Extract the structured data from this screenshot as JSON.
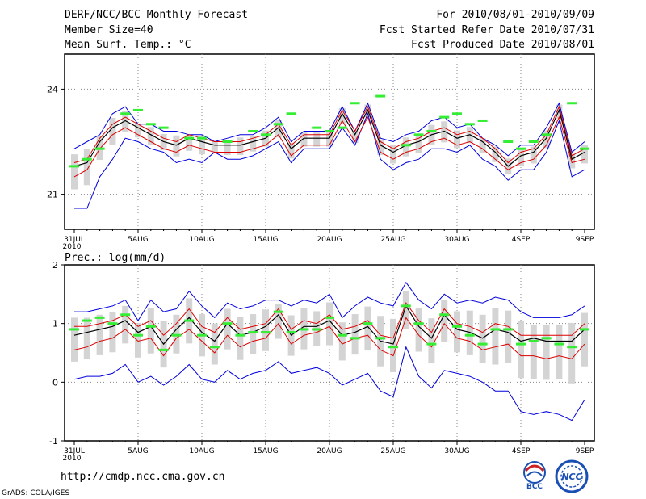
{
  "header": {
    "title": "DERF/NCC/BCC Monthly Forecast",
    "member_size": "Member Size=40",
    "variable": "Mean Surf. Temp.: °C",
    "period": "For 2010/08/01-2010/09/09",
    "start_refer": "Fcst Started Refer Date 2010/07/31",
    "produced": "Fcst Produced Date 2010/08/01"
  },
  "footer": {
    "url": "http://cmdp.ncc.cma.gov.cn",
    "credit": "GrADS: COLA/IGES",
    "logo_left": "BCC",
    "logo_right": "NCC"
  },
  "colors": {
    "ensemble_mean": "#000000",
    "percentile_band": "#dd0000",
    "extreme_envelope": "#0000dd",
    "member_bar": "#d4d4d4",
    "observation": "#33ee33",
    "grid": "#888888"
  },
  "chart_data": [
    {
      "type": "line",
      "title": "Mean Surf. Temp.: °C",
      "ylim": [
        20.0,
        25.0
      ],
      "yticks": [
        21,
        24
      ],
      "xtick_labels": [
        "31JUL",
        "5AUG",
        "10AUG",
        "15AUG",
        "20AUG",
        "25AUG",
        "30AUG",
        "4SEP",
        "9SEP"
      ],
      "xtick_index": [
        0,
        5,
        10,
        15,
        20,
        25,
        30,
        35,
        40
      ],
      "x_sublabel": "2010",
      "x_start_day": 1,
      "x_end_day": 40,
      "series": [
        {
          "name": "mean",
          "values": [
            21.8,
            21.9,
            22.5,
            22.9,
            23.1,
            22.9,
            22.7,
            22.5,
            22.4,
            22.6,
            22.5,
            22.4,
            22.4,
            22.4,
            22.5,
            22.6,
            22.9,
            22.3,
            22.6,
            22.6,
            22.6,
            23.3,
            22.7,
            23.4,
            22.4,
            22.2,
            22.4,
            22.5,
            22.7,
            22.8,
            22.6,
            22.7,
            22.5,
            22.2,
            21.8,
            22.1,
            22.2,
            22.6,
            23.4,
            22.0,
            22.2
          ]
        },
        {
          "name": "high_percentile",
          "values": [
            21.9,
            22.0,
            22.6,
            23.0,
            23.2,
            23.0,
            22.8,
            22.6,
            22.5,
            22.7,
            22.6,
            22.5,
            22.5,
            22.5,
            22.6,
            22.7,
            23.0,
            22.4,
            22.7,
            22.7,
            22.7,
            23.4,
            22.8,
            23.5,
            22.5,
            22.3,
            22.5,
            22.6,
            22.8,
            22.9,
            22.7,
            22.8,
            22.6,
            22.3,
            21.9,
            22.2,
            22.3,
            22.7,
            23.5,
            22.1,
            22.3
          ]
        },
        {
          "name": "low_percentile",
          "values": [
            21.5,
            21.7,
            22.3,
            22.7,
            22.9,
            22.7,
            22.5,
            22.3,
            22.2,
            22.4,
            22.3,
            22.2,
            22.2,
            22.2,
            22.3,
            22.4,
            22.7,
            22.1,
            22.4,
            22.4,
            22.4,
            23.1,
            22.5,
            23.2,
            22.2,
            22.0,
            22.2,
            22.3,
            22.5,
            22.6,
            22.4,
            22.5,
            22.3,
            22.0,
            21.7,
            21.9,
            22.0,
            22.4,
            23.2,
            21.9,
            22.0
          ]
        },
        {
          "name": "max",
          "values": [
            22.3,
            22.5,
            22.7,
            23.3,
            23.5,
            23.0,
            23.0,
            22.8,
            22.8,
            22.7,
            22.7,
            22.5,
            22.6,
            22.7,
            22.7,
            22.9,
            23.2,
            22.5,
            22.8,
            22.8,
            22.8,
            23.5,
            22.8,
            23.6,
            22.6,
            22.5,
            22.7,
            22.8,
            23.1,
            23.2,
            22.9,
            23.0,
            22.6,
            22.4,
            22.1,
            22.4,
            22.4,
            22.9,
            23.6,
            22.2,
            22.5
          ]
        },
        {
          "name": "min",
          "values": [
            20.6,
            20.6,
            21.5,
            22.0,
            22.6,
            22.5,
            22.3,
            22.2,
            21.9,
            22.0,
            21.9,
            22.2,
            22.0,
            22.0,
            22.1,
            22.3,
            22.5,
            21.9,
            22.3,
            22.3,
            22.3,
            22.9,
            22.4,
            23.3,
            22.0,
            21.7,
            21.9,
            22.0,
            22.3,
            22.3,
            22.2,
            22.4,
            22.0,
            21.8,
            21.4,
            21.7,
            21.7,
            22.2,
            23.1,
            21.5,
            21.7
          ]
        },
        {
          "name": "observation",
          "values": [
            21.8,
            22.0,
            22.3,
            null,
            23.3,
            23.4,
            23.0,
            22.9,
            null,
            22.6,
            22.6,
            null,
            22.5,
            null,
            22.8,
            22.7,
            23.0,
            23.3,
            null,
            22.9,
            22.8,
            22.9,
            23.6,
            null,
            23.8,
            null,
            22.4,
            22.7,
            22.8,
            23.2,
            23.3,
            23.0,
            23.1,
            null,
            22.5,
            22.3,
            22.5,
            22.7,
            null,
            23.6,
            22.3
          ]
        }
      ]
    },
    {
      "type": "line",
      "title": "Prec.: log(mm/d)",
      "ylim": [
        -1,
        2
      ],
      "yticks": [
        -1,
        0,
        1,
        2
      ],
      "xtick_labels": [
        "31JUL",
        "5AUG",
        "10AUG",
        "15AUG",
        "20AUG",
        "25AUG",
        "30AUG",
        "4SEP",
        "9SEP"
      ],
      "xtick_index": [
        0,
        5,
        10,
        15,
        20,
        25,
        30,
        35,
        40
      ],
      "x_sublabel": "2010",
      "series": [
        {
          "name": "mean",
          "values": [
            0.8,
            0.85,
            0.9,
            0.95,
            1.05,
            0.85,
            0.95,
            0.65,
            0.9,
            1.1,
            0.85,
            0.7,
            1.0,
            0.8,
            0.85,
            0.95,
            1.15,
            0.8,
            0.95,
            0.95,
            1.05,
            0.8,
            0.85,
            0.95,
            0.7,
            0.65,
            1.3,
            0.95,
            0.75,
            1.15,
            0.9,
            0.85,
            0.75,
            0.9,
            0.85,
            0.7,
            0.75,
            0.7,
            0.7,
            0.7,
            0.9
          ]
        },
        {
          "name": "high_percentile",
          "values": [
            0.95,
            0.95,
            1.0,
            1.05,
            1.15,
            0.95,
            1.05,
            0.8,
            1.0,
            1.25,
            0.95,
            0.85,
            1.1,
            0.9,
            0.95,
            1.0,
            1.25,
            0.9,
            1.05,
            1.0,
            1.15,
            0.9,
            0.95,
            1.05,
            0.8,
            0.75,
            1.35,
            1.05,
            0.85,
            1.25,
            1.0,
            0.95,
            0.85,
            1.0,
            0.95,
            0.8,
            0.8,
            0.8,
            0.8,
            0.8,
            1.0
          ]
        },
        {
          "name": "low_percentile",
          "values": [
            0.55,
            0.6,
            0.7,
            0.75,
            0.9,
            0.7,
            0.75,
            0.45,
            0.75,
            0.9,
            0.7,
            0.5,
            0.8,
            0.6,
            0.7,
            0.75,
            1.0,
            0.65,
            0.8,
            0.85,
            0.95,
            0.65,
            0.75,
            0.8,
            0.55,
            0.45,
            1.1,
            0.8,
            0.6,
            1.0,
            0.75,
            0.7,
            0.55,
            0.6,
            0.65,
            0.45,
            0.45,
            0.4,
            0.45,
            0.4,
            0.65
          ]
        },
        {
          "name": "max",
          "values": [
            1.2,
            1.2,
            1.25,
            1.3,
            1.4,
            1.05,
            1.4,
            1.2,
            1.25,
            1.55,
            1.3,
            1.1,
            1.35,
            1.25,
            1.3,
            1.4,
            1.4,
            1.3,
            1.4,
            1.35,
            1.5,
            1.1,
            1.3,
            1.45,
            1.35,
            1.3,
            1.7,
            1.4,
            1.25,
            1.5,
            1.35,
            1.4,
            1.35,
            1.45,
            1.4,
            1.2,
            1.1,
            1.1,
            1.1,
            1.15,
            1.3
          ]
        },
        {
          "name": "min",
          "values": [
            0.05,
            0.1,
            0.1,
            0.15,
            0.3,
            0.0,
            0.1,
            -0.05,
            0.1,
            0.3,
            0.05,
            0.0,
            0.2,
            0.05,
            0.15,
            0.2,
            0.35,
            0.15,
            0.2,
            0.25,
            0.15,
            -0.05,
            0.05,
            0.15,
            -0.15,
            -0.25,
            0.6,
            0.1,
            -0.1,
            0.2,
            0.15,
            0.1,
            0.0,
            -0.15,
            -0.15,
            -0.5,
            -0.55,
            -0.5,
            -0.55,
            -0.65,
            -0.3
          ]
        },
        {
          "name": "observation",
          "values": [
            0.9,
            1.05,
            1.1,
            1.0,
            1.15,
            0.8,
            0.95,
            0.55,
            0.8,
            1.05,
            0.8,
            0.6,
            1.0,
            0.8,
            0.85,
            0.85,
            1.2,
            0.85,
            0.9,
            0.9,
            1.1,
            0.8,
            0.75,
            1.0,
            0.75,
            0.6,
            1.3,
            1.0,
            0.65,
            1.15,
            0.95,
            0.8,
            0.65,
            0.9,
            0.9,
            0.65,
            0.7,
            0.75,
            0.65,
            0.6,
            0.9
          ]
        }
      ]
    }
  ]
}
